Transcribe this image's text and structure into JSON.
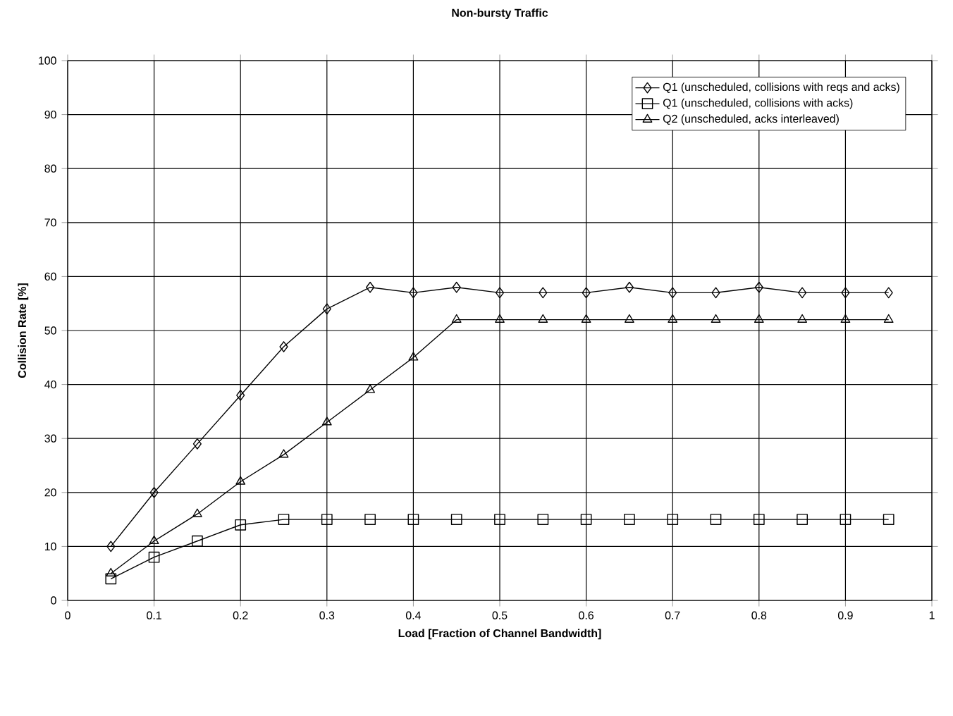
{
  "chart_data": {
    "type": "line",
    "title": "Non-bursty Traffic",
    "xlabel": "Load [Fraction of Channel Bandwidth]",
    "ylabel": "Collision Rate [%]",
    "x": [
      0.05,
      0.1,
      0.15,
      0.2,
      0.25,
      0.3,
      0.35,
      0.4,
      0.45,
      0.5,
      0.55,
      0.6,
      0.65,
      0.7,
      0.75,
      0.8,
      0.85,
      0.9,
      0.95
    ],
    "series": [
      {
        "name": "Q1 (unscheduled, collisions with reqs and acks)",
        "color": "#000000",
        "marker": "diamond",
        "values": [
          10,
          20,
          29,
          38,
          47,
          54,
          58,
          57,
          58,
          57,
          57,
          57,
          58,
          57,
          57,
          58,
          57,
          57,
          57
        ]
      },
      {
        "name": "Q1 (unscheduled, collisions with acks)",
        "color": "#000000",
        "marker": "square",
        "values": [
          4,
          8,
          11,
          14,
          15,
          15,
          15,
          15,
          15,
          15,
          15,
          15,
          15,
          15,
          15,
          15,
          15,
          15,
          15
        ]
      },
      {
        "name": "Q2 (unscheduled, acks interleaved)",
        "color": "#000000",
        "marker": "triangle",
        "values": [
          5,
          11,
          16,
          22,
          27,
          33,
          39,
          45,
          52,
          52,
          52,
          52,
          52,
          52,
          52,
          52,
          52,
          52,
          52
        ]
      }
    ],
    "xlim": [
      0,
      1
    ],
    "xticks": [
      0,
      0.1,
      0.2,
      0.3,
      0.4,
      0.5,
      0.6,
      0.7,
      0.8,
      0.9,
      1
    ],
    "ylim": [
      0,
      100
    ],
    "yticks": [
      0,
      10,
      20,
      30,
      40,
      50,
      60,
      70,
      80,
      90,
      100
    ],
    "grid": true,
    "legend": "top right",
    "line_style": "solid"
  }
}
